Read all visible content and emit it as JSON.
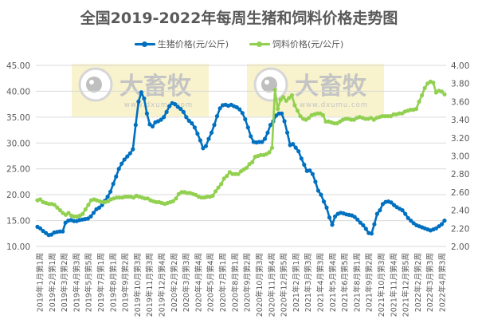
{
  "chart_data": {
    "type": "line",
    "title": "全国2019-2022年每周生猪和饲料价格走势图",
    "xlabel": "",
    "ylabel_left": "",
    "ylabel_right": "",
    "ylim_left": [
      10,
      45
    ],
    "ylim_right": [
      2.0,
      4.0
    ],
    "yticks_left": [
      "45.00",
      "40.00",
      "35.00",
      "30.00",
      "25.00",
      "20.00",
      "15.00",
      "10.00"
    ],
    "yticks_right": [
      "4.00",
      "3.80",
      "3.60",
      "3.40",
      "3.20",
      "3.00",
      "2.80",
      "2.60",
      "2.40",
      "2.20",
      "2.00"
    ],
    "grid": true,
    "legend_position": "top",
    "x_tick_labels": [
      "2019年1月第1周",
      "2019年2月第1周",
      "2019年3月第2周",
      "2019年4月第3周",
      "2019年5月第5周",
      "2019年7月第1周",
      "2019年8月第1周",
      "2019年9月第2周",
      "2019年10月第3周",
      "2019年11月第3周",
      "2019年12月第4周",
      "2020年2月第2周",
      "2020年3月第3周",
      "2020年4月第4周",
      "2020年5月第4周",
      "2020年7月第1周",
      "2020年8月第1周",
      "2020年9月第2周",
      "2020年10月第3周",
      "2020年11月第4周",
      "2020年12月第5周",
      "2021年2月第1周",
      "2021年3月第3周",
      "2021年4月第3周",
      "2021年5月第4周",
      "2021年6月第5周",
      "2021年8月第1周",
      "2021年9月第2周",
      "2021年10月第3周",
      "2021年11月第4周",
      "2021年12月第5周",
      "2022年2月第2周",
      "2022年3月第3周",
      "2022年4月第3周"
    ],
    "series": [
      {
        "name": "生猪价格(元/公斤)",
        "axis": "left",
        "color": "#0070C0",
        "values": [
          13.8,
          13.5,
          13.0,
          12.6,
          12.2,
          12.3,
          12.7,
          12.8,
          12.9,
          12.9,
          14.6,
          15.0,
          15.1,
          14.9,
          14.9,
          15.1,
          15.2,
          15.3,
          15.4,
          15.8,
          16.5,
          17.2,
          17.5,
          18.0,
          18.8,
          19.6,
          20.6,
          22.1,
          23.5,
          25.0,
          26.0,
          26.8,
          27.4,
          28.0,
          28.8,
          33.5,
          38.0,
          39.8,
          38.6,
          35.7,
          33.6,
          33.2,
          34.0,
          34.2,
          34.5,
          35.0,
          36.0,
          37.1,
          37.7,
          37.5,
          37.0,
          36.6,
          36.0,
          35.0,
          34.3,
          33.8,
          33.0,
          31.8,
          30.5,
          29.0,
          29.4,
          30.8,
          32.0,
          33.5,
          35.2,
          36.7,
          37.3,
          37.4,
          37.2,
          37.4,
          37.1,
          36.9,
          36.5,
          35.8,
          34.6,
          33.0,
          31.3,
          30.2,
          30.1,
          30.2,
          30.2,
          30.8,
          32.0,
          33.5,
          34.2,
          35.3,
          35.7,
          35.7,
          34.2,
          32.0,
          29.6,
          29.8,
          29.1,
          28.4,
          27.0,
          25.8,
          24.6,
          24.7,
          24.0,
          22.5,
          20.8,
          20.0,
          18.7,
          17.5,
          15.6,
          14.2,
          15.8,
          16.3,
          16.5,
          16.4,
          16.2,
          16.1,
          16.0,
          15.7,
          15.2,
          14.6,
          14.1,
          13.4,
          12.6,
          12.5,
          14.3,
          16.3,
          17.0,
          18.2,
          18.6,
          18.7,
          18.5,
          18.0,
          17.6,
          17.3,
          17.0,
          16.3,
          15.5,
          15.0,
          14.5,
          14.1,
          13.9,
          13.7,
          13.5,
          13.3,
          13.1,
          13.3,
          13.5,
          13.9,
          14.3,
          15.0
        ]
      },
      {
        "name": "饲料价格(元/公斤)",
        "axis": "right",
        "color": "#92D050",
        "values": [
          2.51,
          2.52,
          2.49,
          2.48,
          2.47,
          2.47,
          2.46,
          2.43,
          2.4,
          2.37,
          2.35,
          2.37,
          2.34,
          2.33,
          2.33,
          2.34,
          2.36,
          2.41,
          2.46,
          2.51,
          2.52,
          2.51,
          2.5,
          2.49,
          2.49,
          2.5,
          2.52,
          2.53,
          2.54,
          2.54,
          2.54,
          2.55,
          2.55,
          2.55,
          2.54,
          2.56,
          2.55,
          2.54,
          2.53,
          2.53,
          2.51,
          2.5,
          2.49,
          2.49,
          2.48,
          2.47,
          2.48,
          2.49,
          2.5,
          2.53,
          2.58,
          2.6,
          2.6,
          2.59,
          2.59,
          2.58,
          2.57,
          2.55,
          2.54,
          2.54,
          2.55,
          2.55,
          2.56,
          2.61,
          2.65,
          2.69,
          2.75,
          2.78,
          2.82,
          2.8,
          2.8,
          2.8,
          2.83,
          2.85,
          2.87,
          2.91,
          2.93,
          2.99,
          3.0,
          3.01,
          3.01,
          3.02,
          3.04,
          3.09,
          3.73,
          3.52,
          3.62,
          3.65,
          3.61,
          3.64,
          3.67,
          3.56,
          3.5,
          3.44,
          3.41,
          3.4,
          3.42,
          3.45,
          3.46,
          3.47,
          3.47,
          3.45,
          3.38,
          3.38,
          3.37,
          3.36,
          3.36,
          3.38,
          3.4,
          3.41,
          3.41,
          3.4,
          3.4,
          3.42,
          3.43,
          3.42,
          3.41,
          3.41,
          3.42,
          3.4,
          3.42,
          3.43,
          3.44,
          3.44,
          3.44,
          3.44,
          3.46,
          3.46,
          3.47,
          3.47,
          3.49,
          3.5,
          3.51,
          3.51,
          3.52,
          3.6,
          3.67,
          3.75,
          3.8,
          3.82,
          3.81,
          3.7,
          3.72,
          3.71,
          3.68
        ]
      }
    ]
  },
  "legend": [
    {
      "label": "生猪价格(元/公斤)",
      "color": "#0070C0"
    },
    {
      "label": "饲料价格(元/公斤)",
      "color": "#92D050"
    }
  ],
  "watermark": {
    "brand": "大畜牧",
    "url": "www.dxumu.com"
  }
}
